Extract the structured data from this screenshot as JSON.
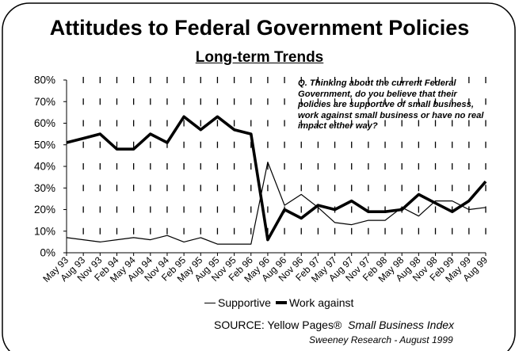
{
  "chart_data": {
    "type": "line",
    "title": "Attitudes to Federal Government Policies",
    "subtitle": "Long-term Trends",
    "question": "Q. Thinking about the current Federal Government, do you believe that their policies are supportive of small business, work against small business or have no real impact either way?",
    "categories": [
      "May 93",
      "Aug 93",
      "Nov 93",
      "Feb 94",
      "May 94",
      "Aug 94",
      "Nov 94",
      "Feb 95",
      "May 95",
      "Aug 95",
      "Nov 95",
      "Feb 96",
      "May 96",
      "Aug 96",
      "Nov 96",
      "Feb 97",
      "May 97",
      "Aug 97",
      "Nov 97",
      "Feb 98",
      "May 98",
      "Aug 98",
      "Nov 98",
      "Feb 99",
      "May 99",
      "Aug 99"
    ],
    "y_ticks": [
      "0%",
      "10%",
      "20%",
      "30%",
      "40%",
      "50%",
      "60%",
      "70%",
      "80%"
    ],
    "ylim": [
      0,
      80
    ],
    "series": [
      {
        "name": "Supportive",
        "color": "#000000",
        "values": [
          7,
          6,
          5,
          6,
          7,
          6,
          8,
          5,
          7,
          4,
          4,
          4,
          42,
          22,
          27,
          21,
          14,
          13,
          15,
          15,
          21,
          17,
          24,
          24,
          20,
          21
        ]
      },
      {
        "name": "Work against",
        "color": "#000000",
        "values": [
          51,
          53,
          55,
          48,
          48,
          55,
          51,
          63,
          57,
          63,
          57,
          55,
          6,
          20,
          16,
          22,
          20,
          24,
          19,
          19,
          20,
          27,
          23,
          19,
          24,
          33
        ]
      }
    ],
    "legend": "bottom",
    "grid": "dotted vertical"
  },
  "footer": {
    "source_label": "SOURCE: Yellow Pages®",
    "source_index": "Small Business Index",
    "credit": "Sweeney Research - August 1999"
  }
}
